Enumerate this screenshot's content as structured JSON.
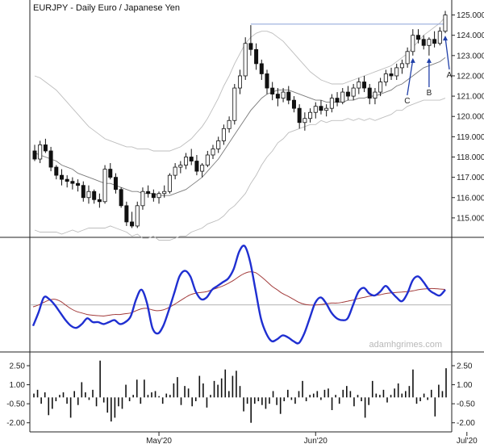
{
  "chart_data": [
    {
      "panel": "price",
      "type": "candlestick",
      "title": "EURJPY - Daily  Euro / Japanese Yen",
      "ylim": [
        114.2,
        125.5
      ],
      "y_ticks": [
        115.0,
        116.0,
        117.0,
        118.0,
        119.0,
        120.0,
        121.0,
        122.0,
        123.0,
        124.0,
        125.0
      ],
      "x_labels": [
        {
          "label": "May'20",
          "index": 23
        },
        {
          "label": "Jun'20",
          "index": 52
        },
        {
          "label": "Jul'20",
          "index": 80
        }
      ],
      "candles": [
        [
          118.3,
          118.6,
          117.8,
          117.9
        ],
        [
          117.9,
          118.8,
          117.7,
          118.6
        ],
        [
          118.6,
          118.9,
          118.2,
          118.3
        ],
        [
          118.3,
          118.5,
          117.3,
          117.5
        ],
        [
          117.5,
          117.6,
          116.9,
          117.1
        ],
        [
          117.1,
          117.4,
          116.6,
          116.9
        ],
        [
          116.9,
          117.1,
          116.5,
          116.8
        ],
        [
          116.8,
          117.0,
          116.4,
          116.7
        ],
        [
          116.7,
          116.9,
          116.3,
          116.6
        ],
        [
          116.6,
          116.8,
          115.8,
          116.0
        ],
        [
          116.0,
          116.6,
          115.7,
          116.3
        ],
        [
          116.3,
          116.4,
          115.7,
          115.9
        ],
        [
          115.9,
          116.2,
          115.5,
          115.8
        ],
        [
          115.8,
          117.6,
          115.7,
          117.4
        ],
        [
          117.4,
          117.7,
          116.9,
          117.0
        ],
        [
          117.0,
          117.2,
          116.2,
          116.4
        ],
        [
          116.4,
          116.5,
          115.5,
          115.6
        ],
        [
          115.6,
          115.8,
          114.6,
          114.8
        ],
        [
          114.8,
          115.3,
          114.5,
          114.6
        ],
        [
          114.6,
          115.8,
          114.5,
          115.6
        ],
        [
          115.6,
          116.5,
          115.4,
          116.3
        ],
        [
          116.3,
          116.6,
          116.0,
          116.2
        ],
        [
          116.2,
          116.4,
          115.8,
          116.0
        ],
        [
          116.0,
          116.3,
          115.7,
          116.2
        ],
        [
          116.2,
          116.6,
          116.0,
          116.3
        ],
        [
          116.3,
          117.2,
          116.2,
          117.1
        ],
        [
          117.1,
          117.7,
          116.9,
          117.5
        ],
        [
          117.5,
          117.8,
          117.2,
          117.6
        ],
        [
          117.6,
          118.2,
          117.4,
          118.0
        ],
        [
          118.0,
          118.4,
          117.6,
          117.8
        ],
        [
          117.8,
          118.1,
          117.1,
          117.3
        ],
        [
          117.3,
          117.7,
          117.0,
          117.6
        ],
        [
          117.6,
          118.3,
          117.5,
          118.1
        ],
        [
          118.1,
          118.6,
          117.9,
          118.4
        ],
        [
          118.4,
          119.0,
          118.2,
          118.8
        ],
        [
          118.8,
          119.6,
          118.6,
          119.4
        ],
        [
          119.4,
          120.0,
          119.2,
          119.8
        ],
        [
          119.8,
          121.6,
          119.6,
          121.4
        ],
        [
          121.4,
          122.3,
          121.1,
          122.0
        ],
        [
          122.0,
          123.9,
          121.8,
          123.6
        ],
        [
          123.6,
          124.5,
          123.0,
          123.3
        ],
        [
          123.3,
          123.6,
          122.3,
          122.6
        ],
        [
          122.6,
          122.8,
          121.8,
          122.1
        ],
        [
          122.1,
          122.3,
          121.1,
          121.4
        ],
        [
          121.4,
          121.7,
          120.8,
          121.1
        ],
        [
          121.1,
          121.4,
          120.5,
          120.9
        ],
        [
          120.9,
          121.4,
          120.7,
          121.2
        ],
        [
          121.2,
          121.5,
          120.6,
          120.8
        ],
        [
          120.8,
          121.0,
          120.2,
          120.4
        ],
        [
          120.4,
          120.6,
          119.4,
          119.7
        ],
        [
          119.7,
          120.2,
          119.3,
          119.9
        ],
        [
          119.9,
          120.4,
          119.7,
          120.2
        ],
        [
          120.2,
          120.7,
          119.9,
          120.5
        ],
        [
          120.5,
          120.8,
          120.1,
          120.3
        ],
        [
          120.3,
          120.6,
          120.0,
          120.4
        ],
        [
          120.4,
          121.1,
          120.2,
          120.9
        ],
        [
          120.9,
          121.2,
          120.5,
          120.7
        ],
        [
          120.7,
          121.4,
          120.6,
          121.2
        ],
        [
          121.2,
          121.5,
          120.8,
          121.0
        ],
        [
          121.0,
          121.6,
          120.8,
          121.4
        ],
        [
          121.4,
          121.9,
          121.1,
          121.7
        ],
        [
          121.7,
          122.0,
          121.2,
          121.4
        ],
        [
          121.4,
          121.6,
          120.6,
          120.9
        ],
        [
          120.9,
          121.4,
          120.6,
          121.2
        ],
        [
          121.2,
          121.9,
          121.0,
          121.7
        ],
        [
          121.7,
          122.3,
          121.5,
          122.1
        ],
        [
          122.1,
          122.4,
          121.8,
          122.0
        ],
        [
          122.0,
          122.6,
          121.8,
          122.4
        ],
        [
          122.4,
          122.8,
          122.1,
          122.6
        ],
        [
          122.6,
          123.4,
          122.4,
          123.2
        ],
        [
          123.2,
          124.3,
          123.0,
          124.0
        ],
        [
          124.0,
          124.3,
          123.6,
          123.8
        ],
        [
          123.8,
          124.0,
          123.3,
          123.5
        ],
        [
          123.5,
          123.9,
          123.0,
          123.8
        ],
        [
          123.8,
          124.2,
          123.4,
          123.6
        ],
        [
          123.6,
          124.4,
          123.5,
          124.2
        ],
        [
          124.2,
          125.2,
          124.1,
          125.0
        ]
      ],
      "middle_band": [
        118.2,
        118.1,
        118.0,
        117.9,
        117.8,
        117.6,
        117.5,
        117.4,
        117.2,
        117.1,
        117.0,
        116.9,
        116.8,
        116.7,
        116.7,
        116.6,
        116.5,
        116.4,
        116.3,
        116.3,
        116.2,
        116.2,
        116.2,
        116.1,
        116.1,
        116.1,
        116.2,
        116.3,
        116.4,
        116.6,
        116.8,
        117.0,
        117.3,
        117.6,
        117.9,
        118.3,
        118.7,
        119.1,
        119.5,
        119.9,
        120.3,
        120.6,
        120.9,
        121.1,
        121.2,
        121.3,
        121.3,
        121.3,
        121.2,
        121.1,
        121.0,
        120.9,
        120.8,
        120.8,
        120.7,
        120.7,
        120.7,
        120.7,
        120.8,
        120.8,
        120.9,
        120.9,
        121.0,
        121.0,
        121.1,
        121.2,
        121.3,
        121.5,
        121.6,
        121.8,
        122.0,
        122.2,
        122.4,
        122.5,
        122.6,
        122.7,
        122.9
      ],
      "upper_band": [
        122.0,
        121.9,
        121.7,
        121.5,
        121.3,
        121.0,
        120.7,
        120.4,
        120.1,
        119.8,
        119.5,
        119.3,
        119.1,
        118.9,
        118.8,
        118.7,
        118.6,
        118.5,
        118.5,
        118.4,
        118.4,
        118.4,
        118.3,
        118.3,
        118.3,
        118.3,
        118.4,
        118.5,
        118.7,
        118.9,
        119.2,
        119.5,
        119.9,
        120.4,
        120.9,
        121.5,
        122.0,
        122.6,
        123.1,
        123.6,
        123.9,
        124.1,
        124.2,
        124.2,
        124.1,
        123.9,
        123.7,
        123.4,
        123.1,
        122.8,
        122.5,
        122.2,
        122.0,
        121.8,
        121.7,
        121.6,
        121.6,
        121.6,
        121.7,
        121.8,
        121.9,
        122.0,
        122.1,
        122.2,
        122.3,
        122.4,
        122.5,
        122.7,
        122.9,
        123.1,
        123.4,
        123.7,
        124.0,
        124.2,
        124.4,
        124.6,
        124.9
      ],
      "lower_band": [
        114.4,
        114.3,
        114.3,
        114.3,
        114.3,
        114.2,
        114.3,
        114.4,
        114.3,
        114.4,
        114.5,
        114.5,
        114.5,
        114.5,
        114.6,
        114.5,
        114.4,
        114.3,
        114.1,
        114.2,
        114.0,
        114.0,
        114.1,
        113.9,
        113.9,
        113.9,
        114.0,
        114.1,
        114.1,
        114.3,
        114.4,
        114.5,
        114.7,
        114.8,
        114.9,
        115.1,
        115.4,
        115.6,
        115.9,
        116.2,
        116.7,
        117.1,
        117.6,
        118.0,
        118.3,
        118.7,
        118.9,
        119.2,
        119.3,
        119.4,
        119.5,
        119.6,
        119.6,
        119.8,
        119.7,
        119.8,
        119.8,
        119.8,
        119.9,
        119.8,
        119.9,
        119.8,
        119.9,
        119.8,
        119.9,
        120.0,
        120.1,
        120.3,
        120.3,
        120.5,
        120.6,
        120.7,
        120.8,
        120.8,
        120.8,
        120.8,
        120.9
      ],
      "reference_line": {
        "value": 124.55,
        "from_index": 40,
        "to_index": 76
      },
      "annotations": [
        {
          "label": "C",
          "index": 70
        },
        {
          "label": "B",
          "index": 73
        },
        {
          "label": "A",
          "index": 76
        }
      ]
    },
    {
      "panel": "oscillator",
      "type": "line",
      "series": [
        {
          "color": "#1f2fd1",
          "values": [
            0.0,
            0.35,
            0.75,
            0.7,
            0.55,
            0.35,
            0.15,
            0.0,
            -0.05,
            0.05,
            0.2,
            0.1,
            0.1,
            0.05,
            0.1,
            0.15,
            0.05,
            0.1,
            0.25,
            0.7,
            0.95,
            0.6,
            -0.05,
            -0.2,
            0.0,
            0.4,
            0.85,
            1.3,
            1.45,
            1.3,
            0.9,
            0.7,
            0.75,
            0.95,
            1.05,
            1.15,
            1.25,
            1.5,
            1.95,
            2.1,
            1.7,
            0.95,
            0.2,
            -0.2,
            -0.4,
            -0.35,
            -0.25,
            -0.3,
            -0.4,
            -0.45,
            -0.2,
            0.2,
            0.6,
            0.75,
            0.6,
            0.35,
            0.2,
            0.15,
            0.2,
            0.55,
            0.9,
            1.0,
            0.85,
            0.8,
            0.9,
            1.05,
            0.9,
            0.75,
            0.65,
            0.85,
            1.2,
            1.3,
            1.15,
            0.95,
            0.85,
            0.8,
            0.95
          ]
        },
        {
          "color": "#a23b3b",
          "values": [
            0.5,
            0.55,
            0.62,
            0.68,
            0.7,
            0.65,
            0.55,
            0.45,
            0.38,
            0.34,
            0.3,
            0.28,
            0.27,
            0.26,
            0.28,
            0.3,
            0.3,
            0.32,
            0.34,
            0.4,
            0.45,
            0.46,
            0.42,
            0.4,
            0.42,
            0.48,
            0.56,
            0.65,
            0.74,
            0.82,
            0.86,
            0.88,
            0.9,
            0.95,
            1.0,
            1.05,
            1.12,
            1.2,
            1.3,
            1.38,
            1.42,
            1.4,
            1.3,
            1.18,
            1.05,
            0.95,
            0.85,
            0.78,
            0.7,
            0.62,
            0.57,
            0.55,
            0.55,
            0.56,
            0.58,
            0.6,
            0.6,
            0.62,
            0.65,
            0.68,
            0.72,
            0.75,
            0.78,
            0.8,
            0.82,
            0.85,
            0.87,
            0.88,
            0.89,
            0.9,
            0.92,
            0.95,
            0.97,
            0.98,
            0.98,
            0.97,
            0.96
          ]
        }
      ],
      "ylim": [
        -0.6,
        2.2
      ],
      "baseline": 0.55
    },
    {
      "panel": "histogram",
      "type": "bar",
      "y_ticks": [
        2.5,
        1.0,
        -0.5,
        -2.0
      ],
      "y_tick_labels": [
        "2.50",
        "1.00",
        "-0.50",
        "-2.00"
      ],
      "ylim": [
        -2.4,
        3.2
      ],
      "values": [
        0.3,
        0.6,
        -0.5,
        0.4,
        -1.4,
        -0.9,
        -0.3,
        0.2,
        0.4,
        -0.5,
        -1.6,
        0.5,
        -0.6,
        1.2,
        0.4,
        -0.2,
        0.6,
        -0.7,
        2.9,
        -0.4,
        -1.2,
        -1.9,
        -1.6,
        -0.7,
        -0.9,
        1.0,
        -0.3,
        0.2,
        1.4,
        -0.5,
        1.4,
        0.2,
        0.4,
        0.5,
        0.1,
        -0.5,
        0.3,
        0.2,
        1.1,
        1.6,
        -0.6,
        0.9,
        0.7,
        -0.7,
        -0.3,
        1.7,
        1.1,
        -0.8,
        0.2,
        1.3,
        1.0,
        1.5,
        2.2,
        0.5,
        1.7,
        2.1,
        0.9,
        -1.1,
        -0.5,
        -2.0,
        -0.5,
        -0.3,
        -0.6,
        -0.9,
        -0.5,
        0.5,
        -0.6,
        -1.3,
        -0.3,
        0.6,
        -0.2,
        -0.5,
        0.5,
        1.3,
        -0.3,
        0.2,
        0.3,
        0.5,
        -0.2,
        0.6,
        0.7,
        -1.0,
        0.2,
        -0.5,
        0.6,
        0.9,
        0.5,
        -0.7,
        0.2,
        -0.3,
        -1.6,
        -0.6,
        1.3,
        0.3,
        0.2,
        0.6,
        -0.4,
        0.2,
        0.7,
        1.1,
        0.3,
        0.5,
        0.9,
        2.2,
        -0.5,
        -0.3,
        0.3,
        -0.2,
        0.6,
        -1.5,
        1.0,
        0.5,
        2.3
      ]
    }
  ],
  "watermark": "adamhgrimes.com"
}
